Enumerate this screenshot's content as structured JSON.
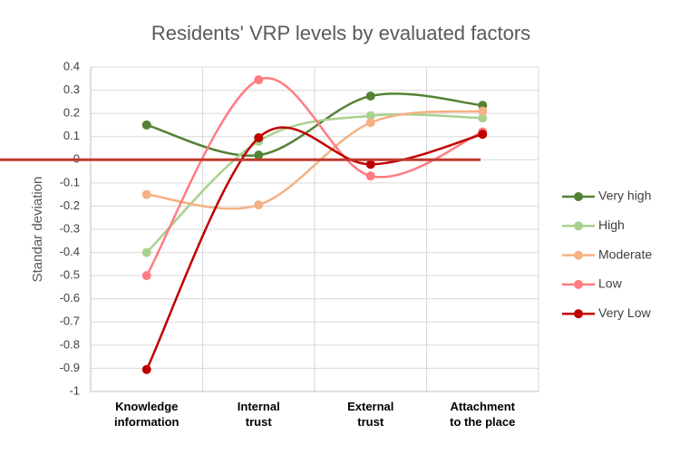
{
  "chart_data": {
    "type": "line",
    "title": "Residents' VRP levels by evaluated factors",
    "y_label": "Standar deviation",
    "categories": [
      "Knowledge\ninformation",
      "Internal\ntrust",
      "External\ntrust",
      "Attachment\nto the place"
    ],
    "series": [
      {
        "name": "Very high",
        "color": "#548235",
        "values": [
          0.15,
          0.02,
          0.275,
          0.235
        ]
      },
      {
        "name": "High",
        "color": "#a9d18e",
        "values": [
          -0.4,
          0.08,
          0.19,
          0.18
        ]
      },
      {
        "name": "Moderate",
        "color": "#f4b183",
        "values": [
          -0.15,
          -0.195,
          0.16,
          0.21
        ]
      },
      {
        "name": "Low",
        "color": "#ff7c80",
        "values": [
          -0.5,
          0.345,
          -0.07,
          0.12
        ]
      },
      {
        "name": "Very Low",
        "color": "#c00000",
        "values": [
          -0.905,
          0.095,
          -0.02,
          0.11
        ]
      }
    ],
    "ylim": [
      -1,
      0.4
    ],
    "yticks": [
      -1,
      -0.9,
      -0.8,
      -0.7,
      -0.6,
      -0.5,
      -0.4,
      -0.3,
      -0.2,
      -0.1,
      0,
      0.1,
      0.2,
      0.3,
      0.4
    ],
    "grid": true,
    "legend": "right",
    "smooth": true
  }
}
